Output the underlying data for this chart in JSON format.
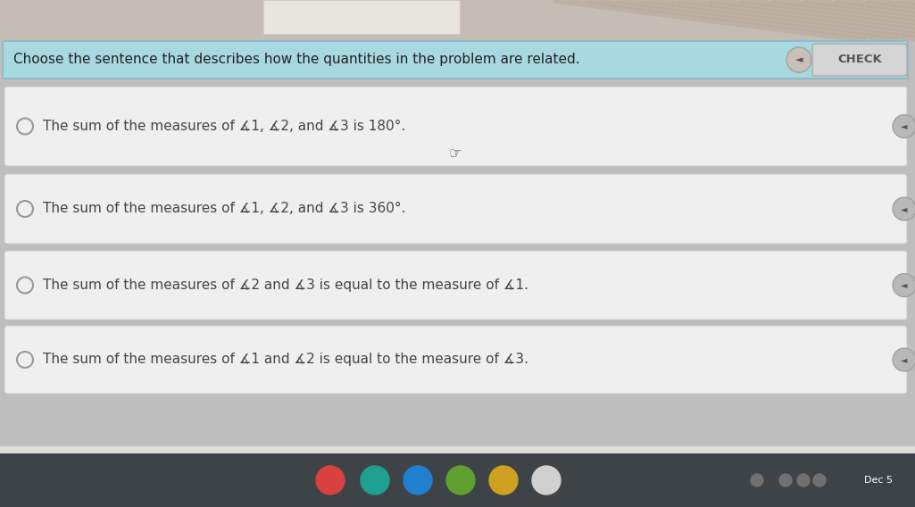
{
  "bg_color": "#bebebe",
  "header_text": "Choose the sentence that describes how the quantities in the problem are related.",
  "header_bg": "#a8d8e0",
  "header_border": "#88b8c8",
  "check_btn_text": "CHECK",
  "options": [
    "The sum of the measures of ∡1, ∡2, and ∡3 is 180°.",
    "The sum of the measures of ∡1, ∡2, and ∡3 is 360°.",
    "The sum of the measures of ∡2 and ∡3 is equal to the measure of ∡1.",
    "The sum of the measures of ∡1 and ∡2 is equal to the measure of ∡3."
  ],
  "option_bg": "#efefef",
  "option_border": "#cccccc",
  "radio_color": "#999999",
  "text_color": "#444444",
  "font_size": 11,
  "header_font_size": 11,
  "taskbar_color": "#3d4347",
  "taskbar_text": "Dec 5",
  "top_bg": "#c5bdb5",
  "top_whiteboard_color": "#e8e4de",
  "stripe_color": "#b8a898",
  "speaker_color": "#aaaaaa",
  "check_bg": "#d5d5d5",
  "check_border": "#aaaaaa"
}
